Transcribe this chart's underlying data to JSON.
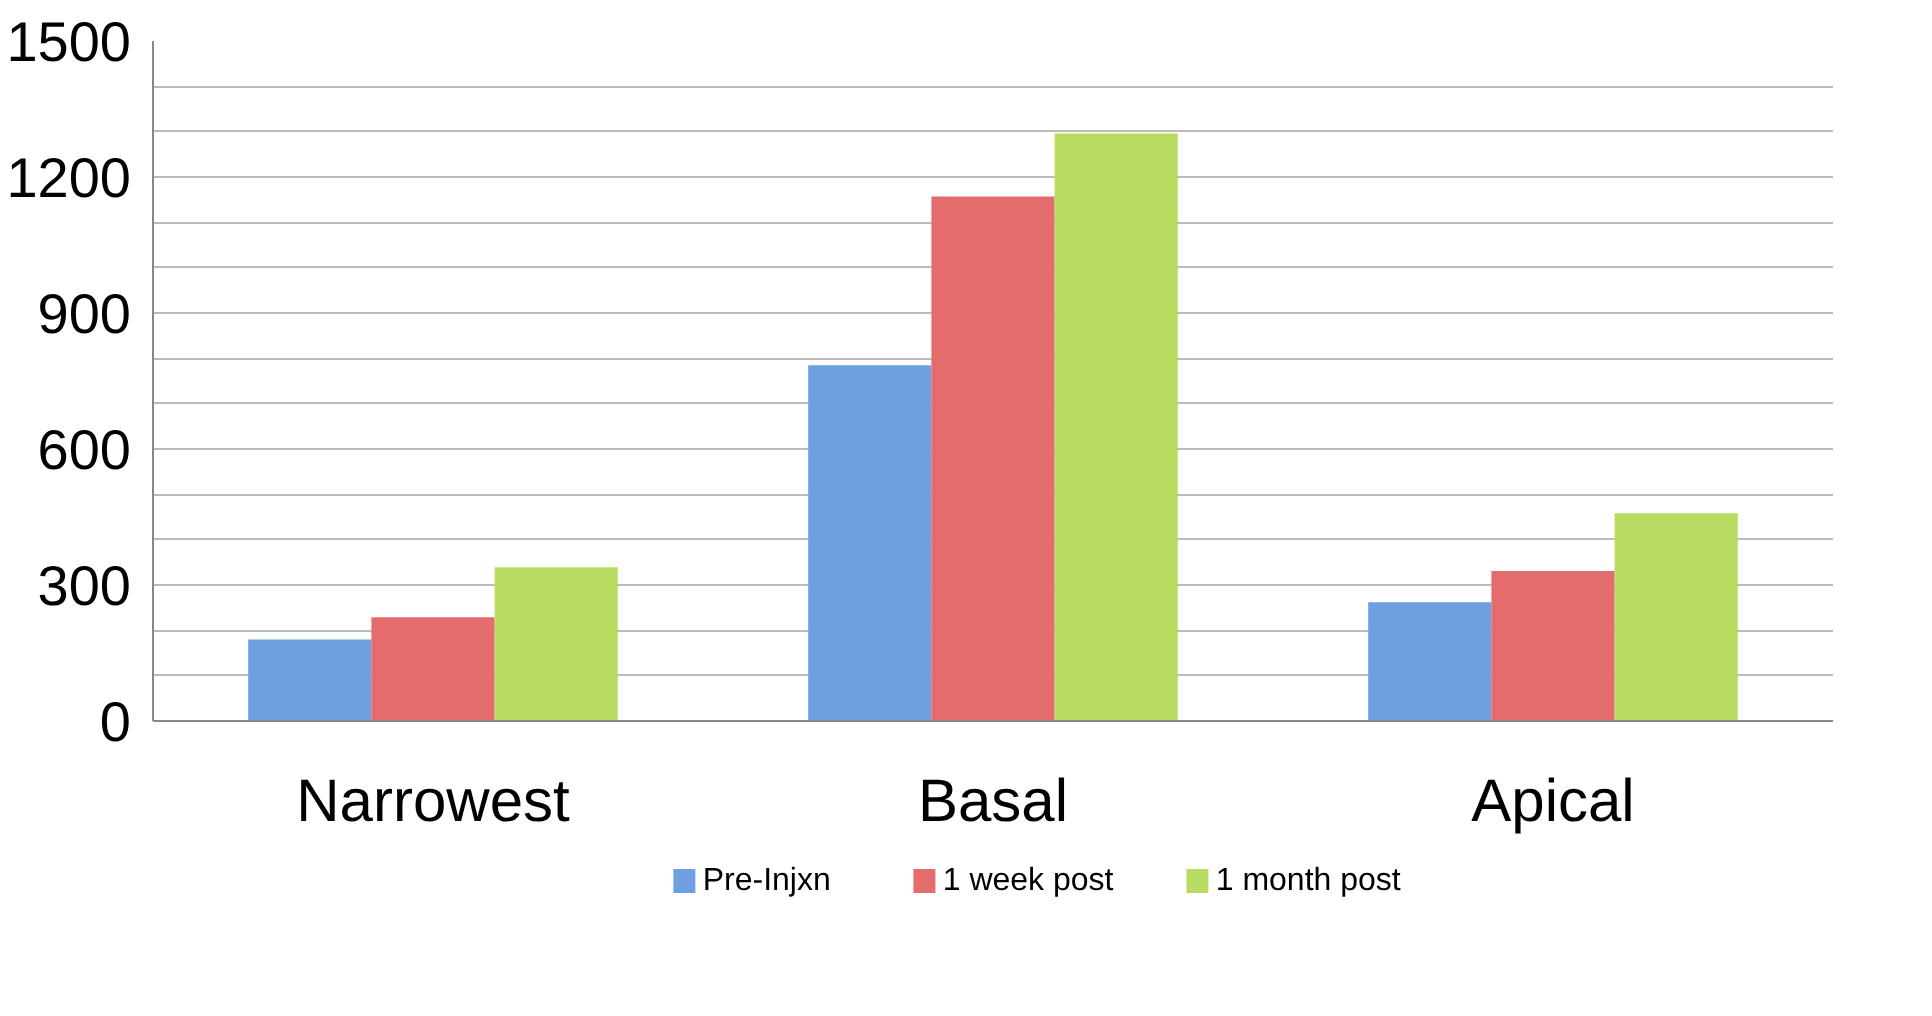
{
  "chart_data": {
    "type": "bar",
    "categories": [
      "Narrowest",
      "Basal",
      "Apical"
    ],
    "series": [
      {
        "name": "Pre-Injxn",
        "color": "#6e9fe0",
        "values": [
          180,
          785,
          262
        ]
      },
      {
        "name": "1 week post",
        "color": "#e46c6c",
        "values": [
          229,
          1157,
          331
        ]
      },
      {
        "name": "1 month post",
        "color": "#b8dc62",
        "values": [
          339,
          1296,
          458
        ]
      }
    ],
    "ylim": [
      0,
      1500
    ],
    "yticks": [
      0,
      {
        "value": 100,
        "label": null
      },
      {
        "value": 200,
        "label": null
      },
      300,
      {
        "value": 400,
        "label": null
      },
      {
        "value": 500,
        "label": null
      },
      600,
      {
        "value": 700,
        "label": null
      },
      {
        "value": 800,
        "label": null
      },
      900,
      {
        "value": 1000,
        "label": null
      },
      {
        "value": 1100,
        "label": null
      },
      1200,
      {
        "value": 1300,
        "label": null
      },
      {
        "value": 1400,
        "label": null
      },
      1500
    ],
    "grid": "y",
    "legend": "bottom"
  }
}
